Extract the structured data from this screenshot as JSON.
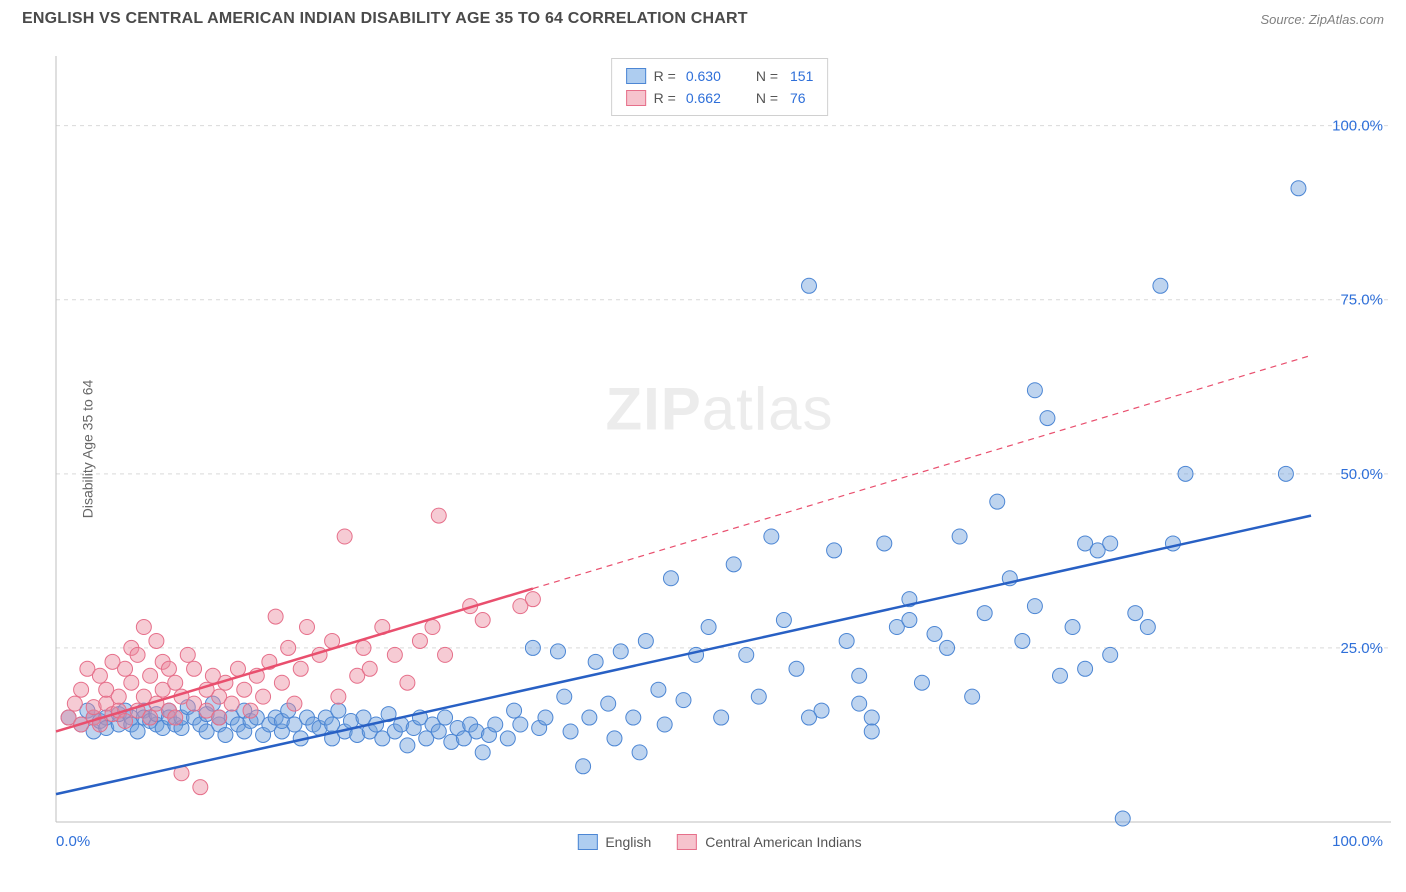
{
  "header": {
    "title": "ENGLISH VS CENTRAL AMERICAN INDIAN DISABILITY AGE 35 TO 64 CORRELATION CHART",
    "source": "Source: ZipAtlas.com"
  },
  "chart": {
    "type": "scatter",
    "ylabel": "Disability Age 35 to 64",
    "watermark": "ZIPatlas",
    "background_color": "#ffffff",
    "grid_color": "#d9d9d9",
    "axis_color": "#bfbfbf",
    "xlim": [
      0,
      100
    ],
    "ylim": [
      0,
      110
    ],
    "x_min_label": "0.0%",
    "x_max_label": "100.0%",
    "y_ticks": [
      25,
      50,
      75,
      100
    ],
    "y_tick_labels": [
      "25.0%",
      "50.0%",
      "75.0%",
      "100.0%"
    ],
    "legend_top": [
      {
        "swatch_fill": "#aecdf0",
        "swatch_stroke": "#4c86d4",
        "r_label": "R =",
        "r_value": "0.630",
        "n_label": "N =",
        "n_value": "151"
      },
      {
        "swatch_fill": "#f6c3cd",
        "swatch_stroke": "#e66f8a",
        "r_label": "R =",
        "r_value": "0.662",
        "n_label": "N =",
        "n_value": "76"
      }
    ],
    "legend_bottom": [
      {
        "swatch_fill": "#aecdf0",
        "swatch_stroke": "#4c86d4",
        "label": "English"
      },
      {
        "swatch_fill": "#f6c3cd",
        "swatch_stroke": "#e66f8a",
        "label": "Central American Indians"
      }
    ],
    "series": [
      {
        "name": "English",
        "marker_color_fill": "rgba(110,160,220,0.45)",
        "marker_color_stroke": "#4c86d4",
        "marker_radius": 7.5,
        "line_color": "#2860c4",
        "line_width": 2.5,
        "line_solid_end_x": 100,
        "regression": {
          "x1": 0,
          "y1": 4,
          "x2": 100,
          "y2": 44
        },
        "points": [
          [
            1,
            15
          ],
          [
            2,
            14
          ],
          [
            2.5,
            16
          ],
          [
            3,
            13
          ],
          [
            3,
            15
          ],
          [
            3.5,
            14.5
          ],
          [
            4,
            15
          ],
          [
            4,
            13.5
          ],
          [
            5,
            14
          ],
          [
            5,
            15.5
          ],
          [
            5.5,
            16
          ],
          [
            6,
            15
          ],
          [
            6,
            14
          ],
          [
            6.5,
            13
          ],
          [
            7,
            16
          ],
          [
            7,
            15
          ],
          [
            7.5,
            14.5
          ],
          [
            8,
            14
          ],
          [
            8,
            15.5
          ],
          [
            8.5,
            13.5
          ],
          [
            9,
            16
          ],
          [
            9,
            15
          ],
          [
            9.5,
            14
          ],
          [
            10,
            13.5
          ],
          [
            10,
            15
          ],
          [
            10.5,
            16.5
          ],
          [
            11,
            15
          ],
          [
            11.5,
            14
          ],
          [
            12,
            13
          ],
          [
            12,
            15.5
          ],
          [
            12.5,
            17
          ],
          [
            13,
            14
          ],
          [
            13,
            15
          ],
          [
            13.5,
            12.5
          ],
          [
            14,
            15
          ],
          [
            14.5,
            14
          ],
          [
            15,
            13
          ],
          [
            15,
            16
          ],
          [
            15.5,
            14.5
          ],
          [
            16,
            15
          ],
          [
            16.5,
            12.5
          ],
          [
            17,
            14
          ],
          [
            17.5,
            15
          ],
          [
            18,
            13
          ],
          [
            18,
            14.5
          ],
          [
            18.5,
            16
          ],
          [
            19,
            14
          ],
          [
            19.5,
            12
          ],
          [
            20,
            15
          ],
          [
            20.5,
            14
          ],
          [
            21,
            13.5
          ],
          [
            21.5,
            15
          ],
          [
            22,
            12
          ],
          [
            22,
            14
          ],
          [
            22.5,
            16
          ],
          [
            23,
            13
          ],
          [
            23.5,
            14.5
          ],
          [
            24,
            12.5
          ],
          [
            24.5,
            15
          ],
          [
            25,
            13
          ],
          [
            25.5,
            14
          ],
          [
            26,
            12
          ],
          [
            26.5,
            15.5
          ],
          [
            27,
            13
          ],
          [
            27.5,
            14
          ],
          [
            28,
            11
          ],
          [
            28.5,
            13.5
          ],
          [
            29,
            15
          ],
          [
            29.5,
            12
          ],
          [
            30,
            14
          ],
          [
            30.5,
            13
          ],
          [
            31,
            15
          ],
          [
            31.5,
            11.5
          ],
          [
            32,
            13.5
          ],
          [
            32.5,
            12
          ],
          [
            33,
            14
          ],
          [
            33.5,
            13
          ],
          [
            34,
            10
          ],
          [
            34.5,
            12.5
          ],
          [
            35,
            14
          ],
          [
            36,
            12
          ],
          [
            36.5,
            16
          ],
          [
            37,
            14
          ],
          [
            38,
            25
          ],
          [
            38.5,
            13.5
          ],
          [
            39,
            15
          ],
          [
            40,
            24.5
          ],
          [
            40.5,
            18
          ],
          [
            41,
            13
          ],
          [
            42,
            8
          ],
          [
            42.5,
            15
          ],
          [
            43,
            23
          ],
          [
            44,
            17
          ],
          [
            44.5,
            12
          ],
          [
            45,
            24.5
          ],
          [
            46,
            15
          ],
          [
            46.5,
            10
          ],
          [
            47,
            26
          ],
          [
            48,
            19
          ],
          [
            48.5,
            14
          ],
          [
            49,
            35
          ],
          [
            50,
            17.5
          ],
          [
            51,
            24
          ],
          [
            52,
            28
          ],
          [
            53,
            15
          ],
          [
            54,
            37
          ],
          [
            55,
            24
          ],
          [
            56,
            18
          ],
          [
            57,
            41
          ],
          [
            58,
            29
          ],
          [
            59,
            22
          ],
          [
            60,
            77
          ],
          [
            61,
            16
          ],
          [
            62,
            39
          ],
          [
            63,
            26
          ],
          [
            64,
            21
          ],
          [
            65,
            15
          ],
          [
            66,
            40
          ],
          [
            67,
            28
          ],
          [
            68,
            32
          ],
          [
            69,
            20
          ],
          [
            70,
            27
          ],
          [
            71,
            25
          ],
          [
            72,
            41
          ],
          [
            73,
            18
          ],
          [
            74,
            30
          ],
          [
            75,
            46
          ],
          [
            76,
            35
          ],
          [
            77,
            26
          ],
          [
            78,
            62
          ],
          [
            79,
            58
          ],
          [
            80,
            21
          ],
          [
            81,
            28
          ],
          [
            82,
            40
          ],
          [
            83,
            39
          ],
          [
            84,
            24
          ],
          [
            85,
            0.5
          ],
          [
            86,
            30
          ],
          [
            87,
            28
          ],
          [
            88,
            77
          ],
          [
            89,
            40
          ],
          [
            90,
            50
          ],
          [
            98,
            50
          ],
          [
            99,
            91
          ],
          [
            78,
            31
          ],
          [
            82,
            22
          ],
          [
            84,
            40
          ],
          [
            64,
            17
          ],
          [
            68,
            29
          ],
          [
            65,
            13
          ],
          [
            60,
            15
          ]
        ]
      },
      {
        "name": "Central American Indians",
        "marker_color_fill": "rgba(235,140,160,0.45)",
        "marker_color_stroke": "#e66f8a",
        "marker_radius": 7.5,
        "line_color": "#e94f6e",
        "line_width": 2.5,
        "line_solid_end_x": 38,
        "regression": {
          "x1": 0,
          "y1": 13,
          "x2": 100,
          "y2": 67
        },
        "points": [
          [
            1,
            15
          ],
          [
            1.5,
            17
          ],
          [
            2,
            14
          ],
          [
            2,
            19
          ],
          [
            2.5,
            22
          ],
          [
            3,
            15
          ],
          [
            3,
            16.5
          ],
          [
            3.5,
            14
          ],
          [
            3.5,
            21
          ],
          [
            4,
            17
          ],
          [
            4,
            19
          ],
          [
            4.5,
            15.5
          ],
          [
            4.5,
            23
          ],
          [
            5,
            16
          ],
          [
            5,
            18
          ],
          [
            5.5,
            14.5
          ],
          [
            5.5,
            22
          ],
          [
            6,
            20
          ],
          [
            6,
            25
          ],
          [
            6.5,
            16
          ],
          [
            6.5,
            24
          ],
          [
            7,
            18
          ],
          [
            7,
            28
          ],
          [
            7.5,
            15
          ],
          [
            7.5,
            21
          ],
          [
            8,
            17
          ],
          [
            8,
            26
          ],
          [
            8.5,
            19
          ],
          [
            8.5,
            23
          ],
          [
            9,
            16
          ],
          [
            9,
            22
          ],
          [
            9.5,
            15
          ],
          [
            9.5,
            20
          ],
          [
            10,
            7
          ],
          [
            10,
            18
          ],
          [
            10.5,
            24
          ],
          [
            11,
            17
          ],
          [
            11,
            22
          ],
          [
            11.5,
            5
          ],
          [
            12,
            19
          ],
          [
            12,
            16
          ],
          [
            12.5,
            21
          ],
          [
            13,
            18
          ],
          [
            13,
            15
          ],
          [
            13.5,
            20
          ],
          [
            14,
            17
          ],
          [
            14.5,
            22
          ],
          [
            15,
            19
          ],
          [
            15.5,
            16
          ],
          [
            16,
            21
          ],
          [
            16.5,
            18
          ],
          [
            17,
            23
          ],
          [
            17.5,
            29.5
          ],
          [
            18,
            20
          ],
          [
            18.5,
            25
          ],
          [
            19,
            17
          ],
          [
            19.5,
            22
          ],
          [
            20,
            28
          ],
          [
            21,
            24
          ],
          [
            22,
            26
          ],
          [
            22.5,
            18
          ],
          [
            23,
            41
          ],
          [
            24,
            21
          ],
          [
            24.5,
            25
          ],
          [
            25,
            22
          ],
          [
            26,
            28
          ],
          [
            27,
            24
          ],
          [
            28,
            20
          ],
          [
            29,
            26
          ],
          [
            30,
            28
          ],
          [
            30.5,
            44
          ],
          [
            31,
            24
          ],
          [
            33,
            31
          ],
          [
            34,
            29
          ],
          [
            37,
            31
          ],
          [
            38,
            32
          ]
        ]
      }
    ]
  }
}
